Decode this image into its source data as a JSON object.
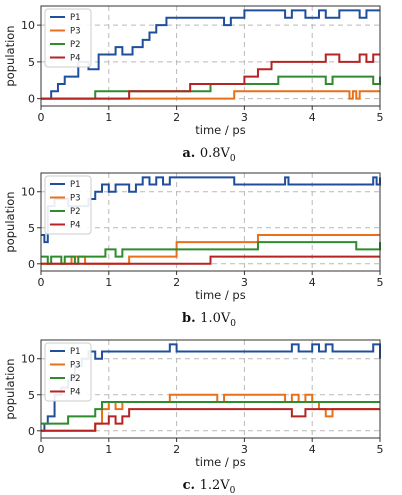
{
  "colors": {
    "P1": "#1f4e9c",
    "P3": "#e8701a",
    "P2": "#2e8b2e",
    "P4": "#b52323"
  },
  "chart_data": [
    {
      "type": "line",
      "caption_letter": "a.",
      "caption_value": "0.8V",
      "caption_sub": "0",
      "xlabel": "time / ps",
      "ylabel": "population",
      "xlim": [
        0,
        5
      ],
      "ylim": [
        -1,
        12.6
      ],
      "xticks": [
        "0",
        "1",
        "2",
        "3",
        "4",
        "5"
      ],
      "yticks": [
        "0",
        "5",
        "10"
      ],
      "grid": true,
      "legend": "top-left",
      "series": [
        {
          "name": "P1",
          "x": [
            0,
            0.05,
            0.15,
            0.25,
            0.35,
            0.45,
            0.55,
            0.7,
            0.85,
            1.0,
            1.1,
            1.2,
            1.35,
            1.5,
            1.6,
            1.7,
            1.75,
            1.85,
            2.7,
            2.8,
            2.9,
            3.0,
            3.5,
            3.6,
            3.7,
            3.9,
            4.1,
            4.2,
            4.4,
            4.5,
            4.7,
            4.8,
            5.0
          ],
          "y": [
            0,
            0,
            1,
            2,
            3,
            3,
            5,
            4,
            6,
            6,
            7,
            6,
            7,
            8,
            9,
            10,
            10,
            11,
            10,
            11,
            11,
            12,
            12,
            11,
            12,
            11,
            12,
            11,
            12,
            12,
            11,
            12,
            12
          ]
        },
        {
          "name": "P3",
          "x": [
            0,
            1.2,
            1.25,
            2.8,
            2.85,
            4.5,
            4.55,
            4.6,
            4.65,
            4.7,
            5.0
          ],
          "y": [
            0,
            0,
            0,
            0,
            1,
            1,
            0,
            1,
            0,
            1,
            1
          ]
        },
        {
          "name": "P2",
          "x": [
            0,
            0.8,
            2.4,
            2.5,
            3.4,
            3.5,
            4.1,
            4.2,
            4.3,
            4.8,
            4.9,
            5.0
          ],
          "y": [
            0,
            1,
            1,
            2,
            2,
            3,
            3,
            2,
            3,
            3,
            2,
            3
          ]
        },
        {
          "name": "P4",
          "x": [
            0,
            1.3,
            2.2,
            3.0,
            3.2,
            3.4,
            3.5,
            4.2,
            4.4,
            4.5,
            4.7,
            4.8,
            4.9,
            5.0
          ],
          "y": [
            0,
            1,
            2,
            3,
            4,
            5,
            5,
            6,
            5,
            5,
            6,
            5,
            6,
            6
          ]
        }
      ]
    },
    {
      "type": "line",
      "caption_letter": "b.",
      "caption_value": "1.0V",
      "caption_sub": "0",
      "xlabel": "time / ps",
      "ylabel": "population",
      "xlim": [
        0,
        5
      ],
      "ylim": [
        -1,
        12.6
      ],
      "xticks": [
        "0",
        "1",
        "2",
        "3",
        "4",
        "5"
      ],
      "yticks": [
        "0",
        "5",
        "10"
      ],
      "grid": true,
      "legend": "top-left",
      "series": [
        {
          "name": "P1",
          "x": [
            0,
            0.05,
            0.1,
            0.2,
            0.4,
            0.5,
            0.7,
            0.8,
            0.9,
            1.0,
            1.1,
            1.2,
            1.3,
            1.4,
            1.5,
            1.6,
            1.7,
            1.8,
            1.9,
            2.0,
            2.1,
            2.8,
            2.85,
            3.6,
            3.65,
            4.9,
            4.95,
            5.0
          ],
          "y": [
            4,
            3,
            8,
            9,
            8,
            8,
            9,
            10,
            11,
            10,
            11,
            11,
            10,
            11,
            12,
            11,
            12,
            11,
            12,
            12,
            12,
            12,
            11,
            12,
            11,
            12,
            11,
            12
          ]
        },
        {
          "name": "P3",
          "x": [
            0,
            0.4,
            0.45,
            0.6,
            0.65,
            1.3,
            2.0,
            3.2,
            5.0
          ],
          "y": [
            0,
            0,
            1,
            1,
            0,
            1,
            3,
            4,
            4
          ]
        },
        {
          "name": "P2",
          "x": [
            0,
            0.1,
            0.15,
            0.3,
            0.35,
            0.5,
            0.55,
            0.9,
            0.95,
            1.1,
            1.2,
            3.0,
            3.2,
            4.6,
            4.65,
            5.0
          ],
          "y": [
            1,
            0,
            1,
            0,
            1,
            0,
            1,
            1,
            2,
            1,
            2,
            2,
            3,
            3,
            2,
            3
          ]
        },
        {
          "name": "P4",
          "x": [
            0,
            2.5,
            5.0
          ],
          "y": [
            0,
            1,
            1
          ]
        }
      ]
    },
    {
      "type": "line",
      "caption_letter": "c.",
      "caption_value": "1.2V",
      "caption_sub": "0",
      "xlabel": "time / ps",
      "ylabel": "population",
      "xlim": [
        0,
        5
      ],
      "ylim": [
        -1,
        12.6
      ],
      "xticks": [
        "0",
        "1",
        "2",
        "3",
        "4",
        "5"
      ],
      "yticks": [
        "0",
        "5",
        "10"
      ],
      "grid": true,
      "legend": "top-left",
      "series": [
        {
          "name": "P1",
          "x": [
            0,
            0.05,
            0.1,
            0.2,
            0.3,
            0.4,
            0.5,
            0.6,
            0.7,
            0.8,
            0.9,
            1.0,
            1.9,
            2.0,
            3.7,
            3.8,
            4.0,
            4.1,
            4.2,
            4.3,
            4.9,
            5.0
          ],
          "y": [
            0,
            1,
            2,
            5,
            6,
            7,
            9,
            10,
            11,
            10,
            11,
            11,
            12,
            11,
            12,
            11,
            12,
            11,
            12,
            11,
            12,
            10
          ]
        },
        {
          "name": "P3",
          "x": [
            0,
            0.8,
            0.9,
            1.0,
            1.1,
            1.2,
            1.9,
            2.0,
            2.6,
            2.7,
            3.6,
            3.7,
            3.8,
            3.9,
            4.0,
            4.1,
            4.2,
            4.3,
            5.0
          ],
          "y": [
            0,
            1,
            3,
            4,
            3,
            4,
            5,
            5,
            4,
            5,
            4,
            5,
            4,
            5,
            4,
            3,
            2,
            3,
            3
          ]
        },
        {
          "name": "P2",
          "x": [
            0,
            0.4,
            0.8,
            0.9,
            1.3,
            4.0,
            5.0
          ],
          "y": [
            1,
            2,
            3,
            4,
            4,
            4,
            4
          ]
        },
        {
          "name": "P4",
          "x": [
            0,
            0.8,
            1.0,
            1.1,
            1.2,
            1.3,
            3.6,
            3.7,
            3.9,
            4.0,
            5.0
          ],
          "y": [
            0,
            1,
            2,
            1,
            2,
            3,
            3,
            2,
            3,
            3,
            3
          ]
        }
      ]
    }
  ]
}
